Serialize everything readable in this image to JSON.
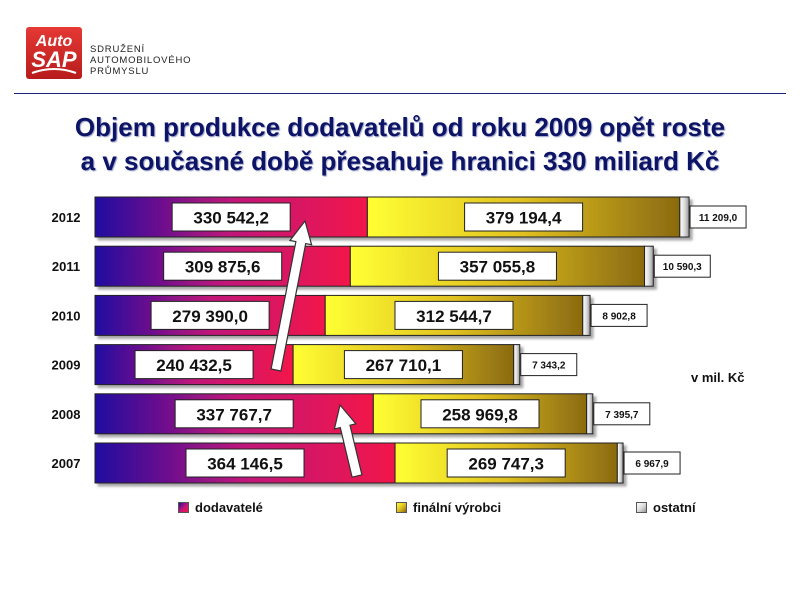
{
  "header": {
    "logo_text_top": "Auto",
    "logo_text_bottom": "SAP",
    "brand_lines": [
      "SDRUŽENÍ",
      "AUTOMOBILOVÉHO",
      "PRŮMYSLU"
    ]
  },
  "title_lines": [
    "Objem produkce dodavatelů od roku 2009 opět roste",
    "a v současné době přesahuje hranici 330 miliard Kč"
  ],
  "unit_label": "v mil. Kč",
  "chart_data": {
    "type": "bar",
    "orientation": "horizontal",
    "stacked": true,
    "categories": [
      "2012",
      "2011",
      "2010",
      "2009",
      "2008",
      "2007"
    ],
    "series": [
      {
        "name": "dodavatelé",
        "values": [
          330542.2,
          309875.6,
          279390.0,
          240432.5,
          337767.7,
          364146.5
        ],
        "labels": [
          "330 542,2",
          "309 875,6",
          "279 390,0",
          "240 432,5",
          "337 767,7",
          "364 146,5"
        ],
        "colors": [
          "#1f0fa0",
          "#c0137a",
          "#f2184a"
        ]
      },
      {
        "name": "finální výrobci",
        "values": [
          379194.4,
          357055.8,
          312544.7,
          267710.1,
          258969.8,
          269747.3
        ],
        "labels": [
          "379 194,4",
          "357 055,8",
          "312 544,7",
          "267 710,1",
          "258 969,8",
          "269 747,3"
        ],
        "colors": [
          "#ffff33",
          "#e0c020",
          "#8a6a10"
        ]
      },
      {
        "name": "ostatní",
        "values": [
          11209.0,
          10590.3,
          8902.8,
          7343.2,
          7395.7,
          6967.9
        ],
        "labels": [
          "11 209,0",
          "10 590,3",
          "8 902,8",
          "7 343,2",
          "7 395,7",
          "6 967,9"
        ],
        "colors": [
          "#ffffff",
          "#dddddd",
          "#999999"
        ]
      }
    ],
    "legend_position": "bottom",
    "annotations": [
      "arrow from 2009 dodavatelé bar toward 2012",
      "arrow from 2007 dodavatelé bar toward 2008"
    ]
  }
}
